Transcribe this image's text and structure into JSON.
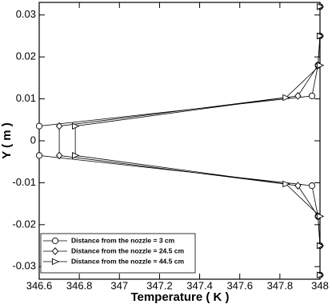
{
  "chart_data": {
    "type": "line",
    "x_label": "Temperature ( K )",
    "y_label": "Y ( m )",
    "xlim": [
      346.6,
      348
    ],
    "xticks": [
      346.6,
      346.8,
      347,
      347.2,
      347.4,
      347.6,
      347.8,
      348
    ],
    "ylim": [
      -0.033,
      0.033
    ],
    "yticks": [
      -0.03,
      -0.02,
      -0.01,
      0,
      0.01,
      0.02,
      0.03
    ],
    "legend": "lower left",
    "series": [
      {
        "name": "Distance from the nozzle = 3 cm",
        "color": "#000000",
        "marker": "circle",
        "x": [
          348,
          348,
          347.99,
          347.96,
          346.6,
          346.6,
          347.96,
          347.99,
          348,
          348
        ],
        "y": [
          0.032,
          0.025,
          0.018,
          0.0107,
          0.0035,
          -0.0035,
          -0.0107,
          -0.018,
          -0.025,
          -0.032
        ]
      },
      {
        "name": "Distance from the nozzle = 24.5 cm",
        "color": "#000000",
        "marker": "diamond",
        "x": [
          348,
          348,
          347.99,
          347.89,
          346.7,
          346.7,
          347.89,
          347.99,
          348,
          348
        ],
        "y": [
          0.032,
          0.025,
          0.018,
          0.0107,
          0.0035,
          -0.0035,
          -0.0107,
          -0.018,
          -0.025,
          -0.032
        ]
      },
      {
        "name": "Distance from the nozzle = 44.5 cm",
        "color": "#000000",
        "marker": "triangle",
        "x": [
          348,
          348,
          348,
          347.83,
          346.78,
          346.78,
          347.83,
          348,
          348,
          348
        ],
        "y": [
          0.032,
          0.025,
          0.018,
          0.0103,
          0.0035,
          -0.0035,
          -0.0103,
          -0.018,
          -0.025,
          -0.032
        ]
      }
    ]
  }
}
